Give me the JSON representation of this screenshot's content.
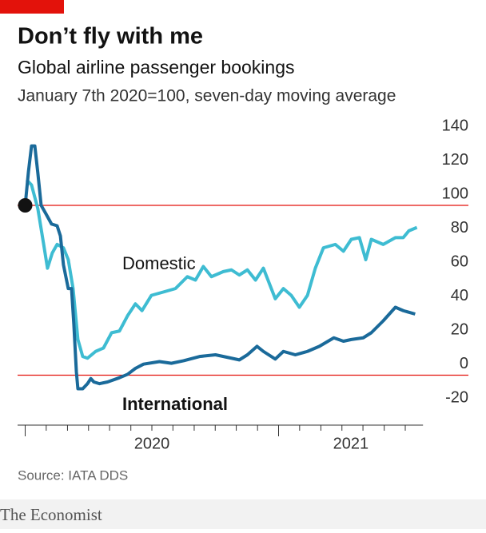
{
  "chart_data": {
    "type": "line",
    "title": "Don’t fly with me",
    "subtitle": "Global airline passenger bookings",
    "note": "January 7th 2020=100, seven-day moving average",
    "source": "Source: IATA DDS",
    "brand": "The Economist",
    "xlim": [
      2019.97,
      2021.57
    ],
    "xticks": [
      {
        "value": 2020,
        "label": "2020"
      },
      {
        "value": 2021,
        "label": "2021"
      }
    ],
    "xticks_minor": [
      2020.083,
      2020.167,
      2020.25,
      2020.333,
      2020.417,
      2020.5,
      2020.583,
      2020.667,
      2020.75,
      2020.833,
      2020.917,
      2021.083,
      2021.167,
      2021.25,
      2021.333,
      2021.417,
      2021.5
    ],
    "ylim": [
      -20,
      140
    ],
    "yticks": [
      -20,
      0,
      20,
      40,
      60,
      80,
      100,
      120,
      140
    ],
    "grid": false,
    "reference_lines": [
      {
        "value": 0,
        "color": "#e3120b"
      },
      {
        "value": 100,
        "color": "#e3120b"
      }
    ],
    "series": [
      {
        "name": "Domestic",
        "color": "#3ebcd2",
        "x": [
          2020.006,
          2020.025,
          2020.05,
          2020.073,
          2020.088,
          2020.107,
          2020.126,
          2020.151,
          2020.17,
          2020.189,
          2020.208,
          2020.227,
          2020.246,
          2020.278,
          2020.309,
          2020.341,
          2020.372,
          2020.404,
          2020.435,
          2020.461,
          2020.498,
          2020.546,
          2020.593,
          2020.64,
          2020.672,
          2020.703,
          2020.735,
          2020.782,
          2020.814,
          2020.845,
          2020.877,
          2020.909,
          2020.94,
          2020.987,
          2021.019,
          2021.05,
          2021.082,
          2021.114,
          2021.145,
          2021.177,
          2021.224,
          2021.256,
          2021.287,
          2021.319,
          2021.344,
          2021.366,
          2021.413,
          2021.461,
          2021.492,
          2021.514,
          2021.546
        ],
        "values": [
          115,
          112,
          98,
          77,
          63,
          72,
          77,
          75,
          68,
          51,
          21,
          11,
          10,
          14,
          16,
          25,
          26,
          35,
          42,
          38,
          47,
          49,
          51,
          58,
          56,
          64,
          58,
          61,
          62,
          59,
          62,
          56,
          63,
          45,
          51,
          47,
          40,
          47,
          63,
          75,
          77,
          73,
          80,
          81,
          68,
          80,
          77,
          81,
          81,
          85,
          87
        ]
      },
      {
        "name": "International",
        "color": "#1a6a9a",
        "x": [
          2020.0,
          2020.013,
          2020.025,
          2020.038,
          2020.05,
          2020.063,
          2020.082,
          2020.104,
          2020.126,
          2020.139,
          2020.151,
          2020.17,
          2020.183,
          2020.192,
          2020.202,
          2020.208,
          2020.227,
          2020.246,
          2020.259,
          2020.271,
          2020.293,
          2020.325,
          2020.372,
          2020.404,
          2020.435,
          2020.467,
          2020.53,
          2020.577,
          2020.625,
          2020.688,
          2020.751,
          2020.814,
          2020.845,
          2020.877,
          2020.915,
          2020.94,
          2020.987,
          2021.019,
          2021.066,
          2021.114,
          2021.161,
          2021.218,
          2021.256,
          2021.287,
          2021.334,
          2021.366,
          2021.413,
          2021.461,
          2021.492,
          2021.539
        ],
        "values": [
          100,
          120,
          135,
          135,
          119,
          100,
          95,
          89,
          88,
          82,
          65,
          51,
          51,
          30,
          2,
          -8,
          -8,
          -5,
          -2,
          -4,
          -5,
          -4,
          -1.5,
          0.5,
          4,
          6.5,
          8,
          7,
          8.5,
          11,
          12,
          10,
          9,
          12,
          17,
          14,
          9.5,
          14,
          12,
          14,
          17,
          22,
          20,
          21,
          22,
          25,
          32,
          40,
          38,
          36
        ]
      }
    ]
  }
}
